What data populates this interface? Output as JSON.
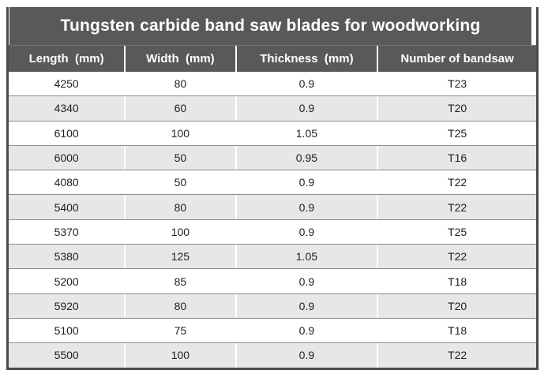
{
  "title": "Tungsten carbide band saw blades for woodworking",
  "table": {
    "columns": [
      "Length  (mm)",
      "Width  (mm)",
      "Thickness  (mm)",
      "Number of bandsaw"
    ],
    "rows": [
      [
        "4250",
        "80",
        "0.9",
        "T23"
      ],
      [
        "4340",
        "60",
        "0.9",
        "T20"
      ],
      [
        "6100",
        "100",
        "1.05",
        "T25"
      ],
      [
        "6000",
        "50",
        "0.95",
        "T16"
      ],
      [
        "4080",
        "50",
        "0.9",
        "T22"
      ],
      [
        "5400",
        "80",
        "0.9",
        "T22"
      ],
      [
        "5370",
        "100",
        "0.9",
        "T25"
      ],
      [
        "5380",
        "125",
        "1.05",
        "T22"
      ],
      [
        "5200",
        "85",
        "0.9",
        "T18"
      ],
      [
        "5920",
        "80",
        "0.9",
        "T20"
      ],
      [
        "5100",
        "75",
        "0.9",
        "T18"
      ],
      [
        "5500",
        "100",
        "0.9",
        "T22"
      ]
    ]
  },
  "colors": {
    "header_bg": "#595959",
    "border": "#4a4a4a",
    "row_alt_bg": "#e7e7e7",
    "row_bg": "#ffffff",
    "separator": "#8c8c8c",
    "header_text": "#ffffff",
    "cell_text": "#1f1f1f"
  }
}
